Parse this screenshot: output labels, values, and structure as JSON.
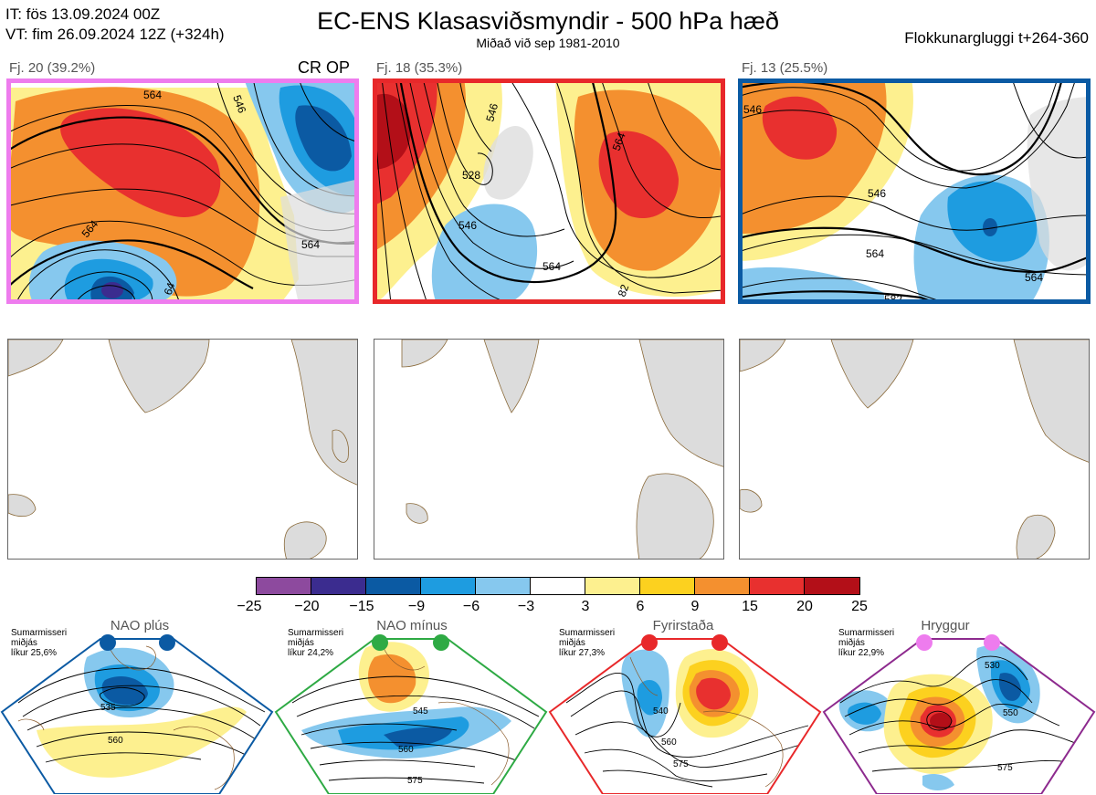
{
  "header": {
    "it_line": "IT: fös 13.09.2024 00Z",
    "vt_line": "VT: fim 26.09.2024 12Z  (+324h)",
    "title": "EC-ENS Klasasviðsmyndir - 500 hPa hæð",
    "subtitle": "Miðað við sep 1981-2010",
    "window": "Flokkunargluggi t+264-360"
  },
  "clusters": [
    {
      "label": "Fj. 20 (39.2%)",
      "tag": "CR OP",
      "frame_color": "#ee7cee",
      "contour_labels": [
        "564",
        "564",
        "564",
        "546",
        "64"
      ]
    },
    {
      "label": "Fj. 18 (35.3%)",
      "tag": "",
      "frame_color": "#e8282a",
      "contour_labels": [
        "528",
        "546",
        "564",
        "546",
        "564",
        "82"
      ]
    },
    {
      "label": "Fj. 13 (25.5%)",
      "tag": "",
      "frame_color": "#0b5aa3",
      "contour_labels": [
        "546",
        "546",
        "564",
        "564",
        "582"
      ]
    }
  ],
  "colorbar": {
    "ticks": [
      "−25",
      "−20",
      "−15",
      "−9",
      "−6",
      "−3",
      "3",
      "6",
      "9",
      "15",
      "20",
      "25"
    ],
    "colors": [
      "#8d4a9e",
      "#3b2c8f",
      "#0b5aa3",
      "#1e9ce0",
      "#86c8ee",
      "#ffffff",
      "#fdf08f",
      "#fcd11f",
      "#f4902f",
      "#e8302f",
      "#b30f18"
    ]
  },
  "regimes": [
    {
      "name": "NAO plús",
      "info": [
        "Sumarmisseri",
        "miðjás",
        "líkur 25,6%"
      ],
      "frame_color": "#0b5aa3",
      "labels": [
        "535",
        "560"
      ]
    },
    {
      "name": "NAO mínus",
      "info": [
        "Sumarmisseri",
        "miðjás",
        "líkur 24,2%"
      ],
      "frame_color": "#2eaa44",
      "labels": [
        "545",
        "560",
        "575"
      ]
    },
    {
      "name": "Fyrirstaða",
      "info": [
        "Sumarmisseri",
        "miðjás",
        "líkur 27,3%"
      ],
      "frame_color": "#e8282a",
      "labels": [
        "540",
        "560",
        "575"
      ]
    },
    {
      "name": "Hryggur",
      "info": [
        "Sumarmisseri",
        "miðjás",
        "líkur 22,9%"
      ],
      "frame_color": "#8d2a8e",
      "labels": [
        "530",
        "550",
        "575"
      ]
    }
  ],
  "chart_data": {
    "type": "heatmap",
    "title": "EC-ENS Klasasviðsmyndir - 500 hPa hæð",
    "subtitle": "Miðað við sep 1981-2010",
    "colorbar_bounds": [
      -25,
      -20,
      -15,
      -9,
      -6,
      -3,
      3,
      6,
      9,
      15,
      20,
      25
    ],
    "clusters": [
      {
        "name": "Fj. 20",
        "share_pct": 39.2
      },
      {
        "name": "Fj. 18",
        "share_pct": 35.3
      },
      {
        "name": "Fj. 13",
        "share_pct": 25.5
      }
    ],
    "regime_probabilities_pct": [
      {
        "name": "NAO plús",
        "value": 25.6
      },
      {
        "name": "NAO mínus",
        "value": 24.2
      },
      {
        "name": "Fyrirstaða",
        "value": 27.3
      },
      {
        "name": "Hryggur",
        "value": 22.9
      }
    ]
  }
}
